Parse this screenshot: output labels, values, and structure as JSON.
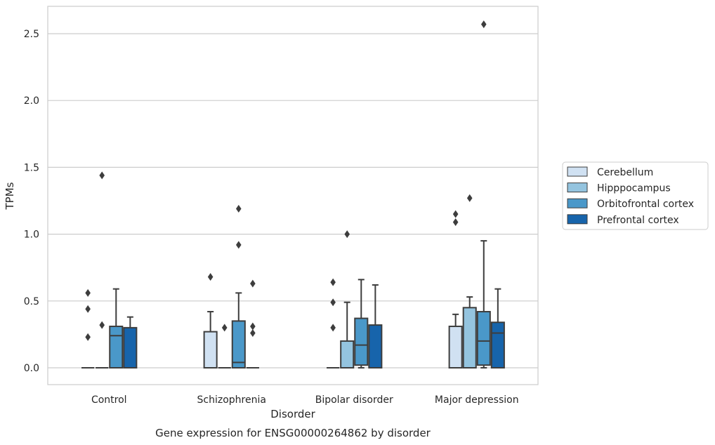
{
  "chart_data": {
    "type": "box",
    "title": "Gene expression for ENSG00000264862 by disorder",
    "xlabel": "Disorder",
    "ylabel": "TPMs",
    "ylim": [
      -0.125,
      2.7
    ],
    "yticks": [
      "0.0",
      "0.5",
      "1.0",
      "1.5",
      "2.0",
      "2.5"
    ],
    "yticks_values": [
      0,
      0.5,
      1.0,
      1.5,
      2.0,
      2.5
    ],
    "grid": "horizontal",
    "legend_position": "right",
    "categories": [
      "Control",
      "Schizophrenia",
      "Bipolar disorder",
      "Major depression"
    ],
    "series": [
      {
        "name": "Cerebellum",
        "color": "#d0e1f2",
        "boxes": [
          {
            "q1": 0,
            "median": 0,
            "q3": 0,
            "whisker_low": 0,
            "whisker_high": 0,
            "outliers": [
              0.23,
              0.44,
              0.56
            ]
          },
          {
            "q1": 0,
            "median": 0,
            "q3": 0.27,
            "whisker_low": 0,
            "whisker_high": 0.42,
            "outliers": [
              0.68
            ]
          },
          {
            "q1": 0,
            "median": 0,
            "q3": 0,
            "whisker_low": 0,
            "whisker_high": 0,
            "outliers": [
              0.3,
              0.49,
              0.64
            ]
          },
          {
            "q1": 0,
            "median": 0,
            "q3": 0.31,
            "whisker_low": 0,
            "whisker_high": 0.4,
            "outliers": [
              1.09,
              1.15
            ]
          }
        ]
      },
      {
        "name": "Hipppocampus",
        "color": "#94c4df",
        "boxes": [
          {
            "q1": 0,
            "median": 0,
            "q3": 0,
            "whisker_low": 0,
            "whisker_high": 0,
            "outliers": [
              0.32,
              1.44
            ]
          },
          {
            "q1": 0,
            "median": 0,
            "q3": 0,
            "whisker_low": 0,
            "whisker_high": 0,
            "outliers": [
              0.3
            ]
          },
          {
            "q1": 0,
            "median": 0,
            "q3": 0.2,
            "whisker_low": 0,
            "whisker_high": 0.49,
            "outliers": [
              1.0
            ]
          },
          {
            "q1": 0,
            "median": 0,
            "q3": 0.45,
            "whisker_low": 0,
            "whisker_high": 0.53,
            "outliers": [
              1.27
            ]
          }
        ]
      },
      {
        "name": "Orbitofrontal cortex",
        "color": "#4a98c9",
        "boxes": [
          {
            "q1": 0,
            "median": 0.24,
            "q3": 0.31,
            "whisker_low": 0,
            "whisker_high": 0.59,
            "outliers": []
          },
          {
            "q1": 0,
            "median": 0.04,
            "q3": 0.35,
            "whisker_low": 0,
            "whisker_high": 0.56,
            "outliers": [
              0.92,
              1.19
            ]
          },
          {
            "q1": 0.02,
            "median": 0.17,
            "q3": 0.37,
            "whisker_low": 0,
            "whisker_high": 0.66,
            "outliers": []
          },
          {
            "q1": 0.02,
            "median": 0.2,
            "q3": 0.42,
            "whisker_low": 0,
            "whisker_high": 0.95,
            "outliers": [
              2.57
            ]
          }
        ]
      },
      {
        "name": "Prefrontal cortex",
        "color": "#1764ab",
        "boxes": [
          {
            "q1": 0,
            "median": 0,
            "q3": 0.3,
            "whisker_low": 0,
            "whisker_high": 0.38,
            "outliers": []
          },
          {
            "q1": 0,
            "median": 0,
            "q3": 0,
            "whisker_low": 0,
            "whisker_high": 0,
            "outliers": [
              0.26,
              0.31,
              0.63
            ]
          },
          {
            "q1": 0,
            "median": 0,
            "q3": 0.32,
            "whisker_low": 0,
            "whisker_high": 0.62,
            "outliers": []
          },
          {
            "q1": 0,
            "median": 0.26,
            "q3": 0.34,
            "whisker_low": 0,
            "whisker_high": 0.59,
            "outliers": []
          }
        ]
      }
    ]
  }
}
